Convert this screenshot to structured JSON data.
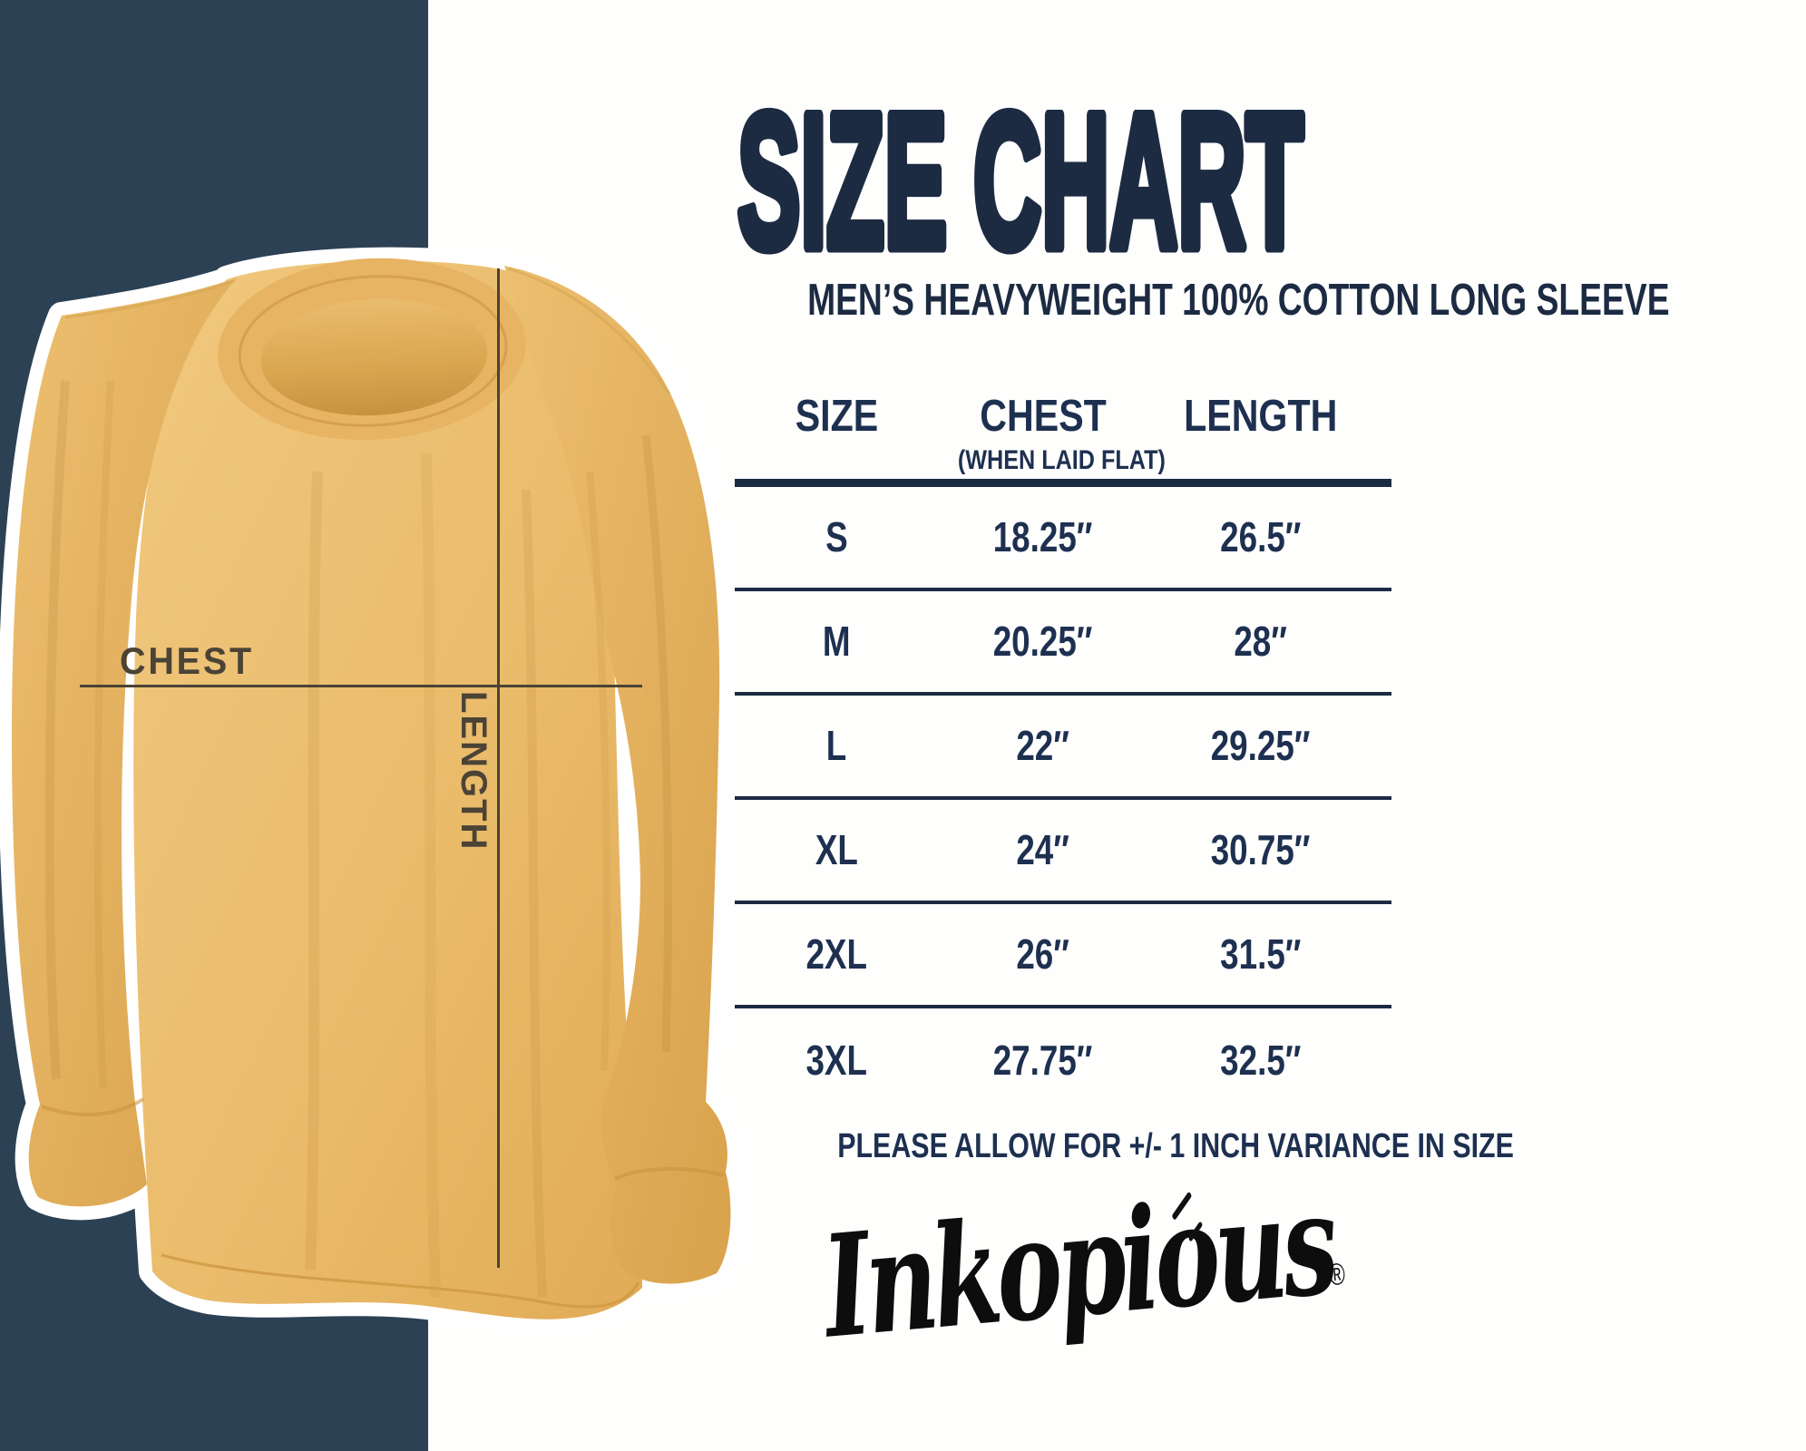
{
  "colors": {
    "navy_bar": "#2C4154",
    "heading_navy": "#1C2B42",
    "table_navy": "#1E3050",
    "shirt_mustard": "#E8B765",
    "measure_dark": "#4A4336",
    "logo_black": "#0D0D0D"
  },
  "shirt": {
    "chest_label": "CHEST",
    "length_label": "LENGTH"
  },
  "header": {
    "title": "SIZE CHART",
    "subtitle": "MEN’S HEAVYWEIGHT 100% COTTON LONG SLEEVE"
  },
  "table": {
    "columns": {
      "size": "SIZE",
      "chest": "CHEST",
      "chest_sub": "(WHEN LAID FLAT)",
      "length": "LENGTH"
    },
    "rows": [
      {
        "size": "S",
        "chest": "18.25″",
        "length": "26.5″"
      },
      {
        "size": "M",
        "chest": "20.25″",
        "length": "28″"
      },
      {
        "size": "L",
        "chest": "22″",
        "length": "29.25″"
      },
      {
        "size": "XL",
        "chest": "24″",
        "length": "30.75″"
      },
      {
        "size": "2XL",
        "chest": "26″",
        "length": "31.5″"
      },
      {
        "size": "3XL",
        "chest": "27.75″",
        "length": "32.5″"
      }
    ]
  },
  "note": "PLEASE ALLOW FOR +/- 1 INCH VARIANCE IN SIZE",
  "brand": {
    "logo_text": "Inkopious",
    "registered": "®"
  },
  "chart_data": {
    "type": "table",
    "title": "SIZE CHART",
    "subtitle": "MEN’S HEAVYWEIGHT 100% COTTON LONG SLEEVE",
    "columns": [
      "SIZE",
      "CHEST (WHEN LAID FLAT)",
      "LENGTH"
    ],
    "rows": [
      [
        "S",
        "18.25″",
        "26.5″"
      ],
      [
        "M",
        "20.25″",
        "28″"
      ],
      [
        "L",
        "22″",
        "29.25″"
      ],
      [
        "XL",
        "24″",
        "30.75″"
      ],
      [
        "2XL",
        "26″",
        "31.5″"
      ],
      [
        "3XL",
        "27.75″",
        "32.5″"
      ]
    ],
    "units": "inches",
    "note": "PLEASE ALLOW FOR +/- 1 INCH VARIANCE IN SIZE"
  }
}
